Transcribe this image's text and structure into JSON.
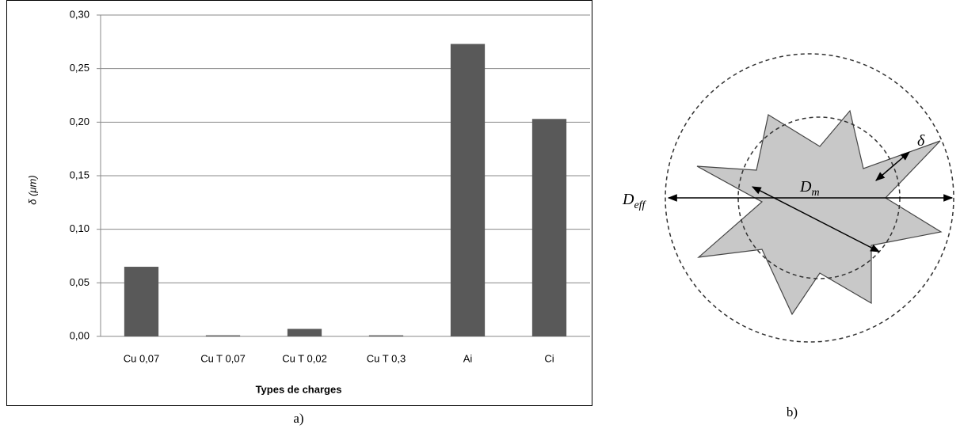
{
  "chart_data": {
    "type": "bar",
    "categories": [
      "Cu 0,07",
      "Cu T 0,07",
      "Cu T 0,02",
      "Cu T 0,3",
      "Ai",
      "Ci"
    ],
    "values": [
      0.065,
      0.001,
      0.007,
      0.001,
      0.273,
      0.203
    ],
    "color": "#595959",
    "x_label": "Types de charges",
    "y_label": "δ (μm)",
    "ylim": [
      0,
      0.3
    ],
    "yticks": [
      {
        "value": 0,
        "label": "0,00"
      },
      {
        "value": 0.05,
        "label": "0,05"
      },
      {
        "value": 0.1,
        "label": "0,10"
      },
      {
        "value": 0.15,
        "label": "0,15"
      },
      {
        "value": 0.2,
        "label": "0,20"
      },
      {
        "value": 0.25,
        "label": "0,25"
      },
      {
        "value": 0.3,
        "label": "0,30"
      }
    ],
    "grid": true
  },
  "captions": {
    "a": "a)",
    "b": "b)"
  },
  "diagram": {
    "d_eff": {
      "main": "D",
      "sub": "eff"
    },
    "d_m": {
      "main": "D",
      "sub": "m"
    },
    "delta": "δ"
  }
}
